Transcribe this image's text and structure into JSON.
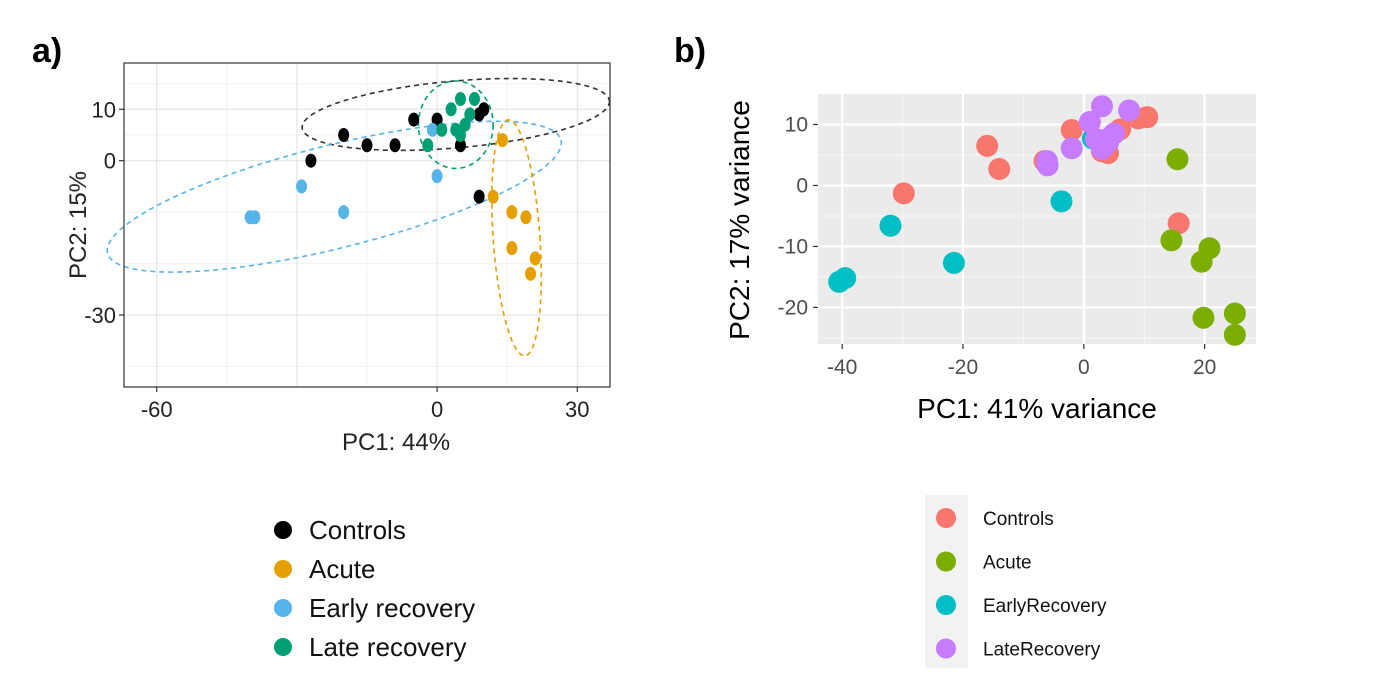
{
  "panel_a_label": "a)",
  "panel_b_label": "b)",
  "chart_data": [
    {
      "type": "scatter",
      "panel": "a)",
      "xlabel": "PC1: 44%",
      "ylabel": "PC2: 15%",
      "xlim": [
        -67,
        37
      ],
      "ylim": [
        -44,
        19
      ],
      "xticks": [
        -60,
        0,
        30
      ],
      "yticks": [
        10,
        0,
        -30
      ],
      "grid": true,
      "ellipses": true,
      "legend_position": "bottom",
      "series": [
        {
          "name": "Controls",
          "color": "#000000",
          "points": [
            [
              -27,
              0
            ],
            [
              -20,
              5
            ],
            [
              -15,
              3
            ],
            [
              -9,
              3
            ],
            [
              -5,
              8
            ],
            [
              0,
              8
            ],
            [
              5,
              3
            ],
            [
              9,
              9
            ],
            [
              10,
              10
            ],
            [
              9,
              -7
            ]
          ]
        },
        {
          "name": "Acute",
          "color": "#E69F00",
          "points": [
            [
              14,
              4
            ],
            [
              12,
              -7
            ],
            [
              16,
              -10
            ],
            [
              19,
              -11
            ],
            [
              16,
              -17
            ],
            [
              21,
              -19
            ],
            [
              20,
              -22
            ]
          ]
        },
        {
          "name": "Early recovery",
          "color": "#56B4E9",
          "points": [
            [
              -40,
              -11
            ],
            [
              -39,
              -11
            ],
            [
              -29,
              -5
            ],
            [
              -20,
              -10
            ],
            [
              -1,
              6
            ],
            [
              0,
              -3
            ]
          ]
        },
        {
          "name": "Late recovery",
          "color": "#009E73",
          "points": [
            [
              -2,
              3
            ],
            [
              1,
              6
            ],
            [
              3,
              10
            ],
            [
              5,
              12
            ],
            [
              8,
              12
            ],
            [
              6,
              7
            ],
            [
              5,
              5
            ],
            [
              7,
              9
            ],
            [
              4,
              6
            ]
          ]
        }
      ]
    },
    {
      "type": "scatter",
      "panel": "b)",
      "xlabel": "PC1: 41% variance",
      "ylabel": "PC2: 17% variance",
      "xlim": [
        -44,
        28.5
      ],
      "ylim": [
        -26,
        15
      ],
      "xticks": [
        -40,
        -20,
        0,
        20
      ],
      "yticks": [
        10,
        0,
        -10,
        -20
      ],
      "grid": true,
      "legend_position": "bottom",
      "series": [
        {
          "name": "Controls",
          "color": "#F8766D",
          "points": [
            [
              -29.8,
              -1.3
            ],
            [
              -16,
              6.5
            ],
            [
              -14,
              2.7
            ],
            [
              -2,
              9.1
            ],
            [
              3,
              5.6
            ],
            [
              4,
              5.3
            ],
            [
              6,
              9.2
            ],
            [
              9,
              11
            ],
            [
              10.5,
              11.2
            ],
            [
              -6.5,
              4
            ],
            [
              15.7,
              -6.2
            ]
          ]
        },
        {
          "name": "Acute",
          "color": "#7CAE00",
          "points": [
            [
              15.5,
              4.3
            ],
            [
              14.5,
              -9
            ],
            [
              19.5,
              -12.5
            ],
            [
              20.8,
              -10.3
            ],
            [
              19.8,
              -21.7
            ],
            [
              25,
              -21
            ],
            [
              25,
              -24.5
            ]
          ]
        },
        {
          "name": "EarlyRecovery",
          "color": "#00BFC4",
          "points": [
            [
              -40.5,
              -15.8
            ],
            [
              -39.5,
              -15.2
            ],
            [
              -32,
              -6.6
            ],
            [
              -21.5,
              -12.7
            ],
            [
              -3.7,
              -2.6
            ],
            [
              1.5,
              7.7
            ]
          ]
        },
        {
          "name": "LateRecovery",
          "color": "#C77CFF",
          "points": [
            [
              -6,
              3.3
            ],
            [
              -6.1,
              4
            ],
            [
              -2,
              6.1
            ],
            [
              1,
              10.4
            ],
            [
              3,
              13
            ],
            [
              7.5,
              12.3
            ],
            [
              2,
              7.6
            ],
            [
              3,
              6
            ],
            [
              4,
              7
            ],
            [
              5,
              8.5
            ],
            [
              3.5,
              7.5
            ]
          ]
        }
      ]
    }
  ]
}
